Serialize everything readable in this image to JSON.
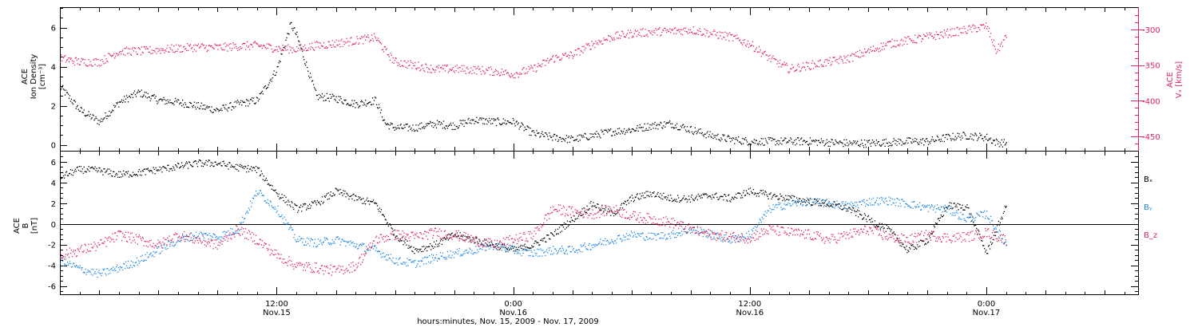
{
  "chart_data": [
    {
      "type": "scatter",
      "xlabel": "hours:minutes, Nov. 15, 2009 - Nov. 17, 2009",
      "x_ticks": [
        {
          "time": "12:00",
          "date": "Nov.15",
          "hours": 12
        },
        {
          "time": "0:00",
          "date": "Nov.16",
          "hours": 24
        },
        {
          "time": "12:00",
          "date": "Nov.16",
          "hours": 36
        },
        {
          "time": "0:00",
          "date": "Nov.17",
          "hours": 48
        }
      ],
      "xlim_hours": [
        1.0,
        55.7
      ],
      "left_axis": {
        "label_lines": [
          "ACE",
          "Ion Density",
          "[cm⁻³]"
        ],
        "ylim": [
          -0.3,
          7.0
        ],
        "ticks": [
          0,
          2,
          4,
          6
        ],
        "color": "#000000"
      },
      "right_axis": {
        "label_lines": [
          "ACE",
          "Vₓ [km/s]"
        ],
        "ylim": [
          -470,
          -270
        ],
        "ticks": [
          -300,
          -350,
          -400,
          -450
        ],
        "color": "#e0245e"
      },
      "series": [
        {
          "axis": "left",
          "color": "#000000",
          "key_x": [
            1,
            2,
            3,
            4,
            5,
            6,
            7,
            8,
            9,
            10,
            11,
            12,
            12.7,
            13,
            14,
            15,
            16,
            17,
            17.5,
            18,
            19,
            20,
            21,
            22,
            23,
            24,
            25,
            26,
            27,
            28,
            29,
            30,
            31,
            32,
            33,
            34,
            35,
            36,
            37,
            38,
            39,
            40,
            41,
            42,
            43,
            44,
            45,
            46,
            47,
            48,
            48.5,
            49
          ],
          "key_y": [
            3.0,
            1.8,
            1.2,
            2.2,
            2.7,
            2.3,
            2.2,
            2.0,
            1.8,
            2.1,
            2.3,
            3.9,
            6.2,
            5.6,
            2.5,
            2.4,
            2.1,
            2.3,
            1.1,
            0.9,
            0.9,
            1.1,
            1.0,
            1.3,
            1.2,
            1.2,
            0.6,
            0.4,
            0.3,
            0.5,
            0.7,
            0.8,
            1.0,
            1.1,
            0.8,
            0.5,
            0.3,
            0.2,
            0.2,
            0.2,
            0.2,
            0.15,
            0.1,
            0.1,
            0.15,
            0.2,
            0.2,
            0.4,
            0.5,
            0.4,
            0.15,
            0.1
          ],
          "noise": 0.2
        },
        {
          "axis": "right",
          "color": "#e0245e",
          "key_x": [
            1,
            2,
            3,
            4,
            5,
            6,
            7,
            8,
            9,
            10,
            11,
            12,
            13,
            14,
            15,
            16,
            17,
            17.5,
            18,
            19,
            20,
            21,
            22,
            23,
            24,
            25,
            26,
            27,
            28,
            29,
            30,
            31,
            32,
            33,
            34,
            35,
            36,
            37,
            38,
            39,
            40,
            41,
            42,
            43,
            44,
            45,
            46,
            47,
            48,
            48.5,
            49
          ],
          "key_y": [
            -340,
            -345,
            -345,
            -330,
            -330,
            -328,
            -326,
            -324,
            -325,
            -323,
            -322,
            -326,
            -327,
            -322,
            -319,
            -315,
            -311,
            -330,
            -345,
            -350,
            -355,
            -355,
            -356,
            -358,
            -362,
            -355,
            -340,
            -335,
            -320,
            -310,
            -305,
            -303,
            -302,
            -300,
            -305,
            -310,
            -320,
            -340,
            -355,
            -350,
            -345,
            -340,
            -330,
            -320,
            -315,
            -310,
            -305,
            -300,
            -295,
            -330,
            -310
          ],
          "noise": 6
        }
      ]
    },
    {
      "type": "scatter",
      "ylabel_lines": [
        "ACE",
        "B",
        "[nT]"
      ],
      "ylim": [
        -6.8,
        7.0
      ],
      "ticks": [
        -6,
        -4,
        -2,
        0,
        2,
        4,
        6
      ],
      "zero_line": true,
      "legend": [
        {
          "label": "Bₓ",
          "color": "#000000"
        },
        {
          "label": "Bᵧ",
          "color": "#1e88e5"
        },
        {
          "label": "B_z",
          "color": "#e0245e"
        }
      ],
      "series": [
        {
          "name": "Bₓ",
          "color": "#000000",
          "key_x": [
            1,
            2,
            3,
            4,
            5,
            6,
            7,
            8,
            9,
            10,
            11,
            12,
            13,
            14,
            15,
            16,
            17,
            18,
            19,
            20,
            21,
            22,
            23,
            24,
            25,
            26,
            27,
            28,
            29,
            30,
            31,
            32,
            33,
            34,
            35,
            36,
            37,
            38,
            39,
            40,
            41,
            42,
            43,
            44,
            45,
            46,
            47,
            48,
            49
          ],
          "key_y": [
            4.6,
            5.3,
            5.2,
            4.8,
            5.0,
            5.3,
            5.6,
            5.9,
            5.9,
            5.5,
            5.3,
            3.0,
            1.5,
            2.0,
            3.2,
            2.5,
            2.0,
            -1.0,
            -2.5,
            -2.0,
            -1.0,
            -1.5,
            -2.0,
            -2.5,
            -2.0,
            -1.0,
            0.5,
            2.0,
            1.0,
            2.5,
            3.0,
            2.5,
            2.5,
            2.8,
            2.5,
            3.2,
            2.8,
            2.5,
            2.2,
            2.0,
            1.5,
            0.5,
            -0.5,
            -2.5,
            -1.5,
            1.8,
            1.7,
            -2.8,
            1.8
          ],
          "noise": 0.35
        },
        {
          "name": "Bᵧ",
          "color": "#1e88e5",
          "key_x": [
            1,
            2,
            3,
            4,
            5,
            6,
            7,
            8,
            9,
            10,
            11,
            12,
            13,
            14,
            15,
            16,
            17,
            18,
            19,
            20,
            21,
            22,
            23,
            24,
            25,
            26,
            27,
            28,
            29,
            30,
            31,
            32,
            33,
            34,
            35,
            36,
            37,
            38,
            39,
            40,
            41,
            42,
            43,
            44,
            45,
            46,
            47,
            48,
            49
          ],
          "key_y": [
            -3.5,
            -4.3,
            -4.8,
            -4.2,
            -3.5,
            -2.5,
            -1.5,
            -1.0,
            -1.2,
            -0.5,
            3.2,
            1.5,
            -1.5,
            -1.8,
            -1.5,
            -2.0,
            -2.5,
            -3.5,
            -3.8,
            -3.2,
            -2.8,
            -2.5,
            -2.0,
            -2.5,
            -2.8,
            -2.5,
            -2.5,
            -2.0,
            -1.5,
            -1.0,
            -1.2,
            -1.0,
            -0.5,
            -1.0,
            -1.5,
            -1.0,
            1.5,
            2.0,
            2.2,
            2.0,
            1.8,
            2.2,
            2.3,
            2.0,
            1.6,
            1.5,
            0.5,
            1.0,
            -2.0
          ],
          "noise": 0.4
        },
        {
          "name": "B_z",
          "color": "#e0245e",
          "key_x": [
            1,
            2,
            3,
            4,
            5,
            6,
            7,
            8,
            9,
            10,
            11,
            12,
            13,
            14,
            15,
            16,
            17,
            18,
            19,
            20,
            21,
            22,
            23,
            24,
            25,
            26,
            27,
            28,
            29,
            30,
            31,
            32,
            33,
            34,
            35,
            36,
            37,
            38,
            39,
            40,
            41,
            42,
            43,
            44,
            45,
            46,
            47,
            48,
            49
          ],
          "key_y": [
            -3.0,
            -2.5,
            -2.0,
            -1.0,
            -1.5,
            -2.0,
            -1.0,
            -1.5,
            -2.0,
            -0.5,
            -1.5,
            -3.0,
            -4.0,
            -4.2,
            -4.5,
            -4.0,
            -1.5,
            -1.0,
            -1.2,
            -0.8,
            -1.0,
            -1.5,
            -2.0,
            -1.5,
            -1.0,
            1.5,
            1.2,
            1.0,
            1.5,
            0.8,
            0.5,
            0.2,
            -0.5,
            -1.0,
            -1.2,
            -1.3,
            -0.5,
            -0.8,
            -1.0,
            -1.5,
            -1.0,
            -0.5,
            -1.2,
            -1.5,
            -1.0,
            -1.3,
            -1.2,
            -0.8,
            -1.5
          ],
          "noise": 0.5
        }
      ]
    }
  ]
}
